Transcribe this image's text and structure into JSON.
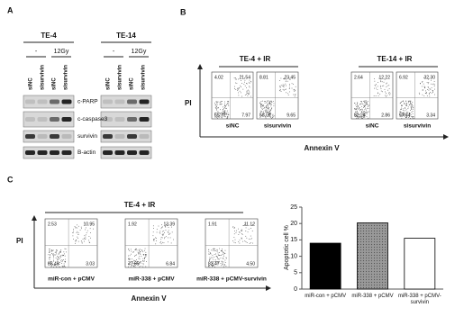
{
  "panel_a": {
    "label": "A",
    "groups": [
      {
        "title": "TE-4",
        "treatments": [
          "-",
          "12Gy"
        ],
        "lanes": [
          "siNC",
          "sisurvivin",
          "siNC",
          "sisurvivin"
        ]
      },
      {
        "title": "TE-14",
        "treatments": [
          "-",
          "12Gy"
        ],
        "lanes": [
          "siNC",
          "sisurvivin",
          "siNC",
          "sisurvivin"
        ]
      }
    ],
    "proteins": [
      "c-PARP",
      "c-caspase3",
      "survivin",
      "B-actin"
    ]
  },
  "panel_b": {
    "label": "B",
    "y_label": "PI",
    "x_label": "Annexin V",
    "groups": [
      {
        "title": "TE-4 + IR",
        "plots": [
          {
            "label": "siNC",
            "quadrants": [
              "4.02",
              "21.54",
              "65.77",
              "7.97"
            ]
          },
          {
            "label": "sisurvivin",
            "quadrants": [
              "8.81",
              "23.45",
              "58.09",
              "9.65"
            ]
          }
        ]
      },
      {
        "title": "TE-14 + IR",
        "plots": [
          {
            "label": "siNC",
            "quadrants": [
              "2.64",
              "12.22",
              "82.28",
              "2.86"
            ]
          },
          {
            "label": "sisurvivin",
            "quadrants": [
              "6.92",
              "32.30",
              "57.44",
              "3.34"
            ]
          }
        ]
      }
    ]
  },
  "panel_c": {
    "label": "C",
    "title": "TE-4 + IR",
    "y_label": "PI",
    "x_label": "Annexin V",
    "plots": [
      {
        "label": "miR-con + pCMV",
        "quadrants": [
          "2.53",
          "10.95",
          "83.45",
          "3.03"
        ]
      },
      {
        "label": "miR-338 + pCMV",
        "quadrants": [
          "1.92",
          "13.39",
          "77.85",
          "6.84"
        ]
      },
      {
        "label": "miR-338 + pCMV-survivin",
        "quadrants": [
          "1.91",
          "11.12",
          "82.47",
          "4.50"
        ]
      }
    ],
    "chart": {
      "type": "bar",
      "y_label": "Apoptotic cell %",
      "categories": [
        "miR-con + pCMV",
        "miR-338 + pCMV",
        "miR-338 + pCMV-survivin"
      ],
      "values": [
        14,
        20.2,
        15.5
      ],
      "colors": [
        "#000000",
        "#8a8a8a",
        "#ffffff"
      ],
      "ylim": [
        0,
        25
      ],
      "yticks": [
        0,
        5,
        10,
        15,
        20,
        25
      ]
    }
  }
}
